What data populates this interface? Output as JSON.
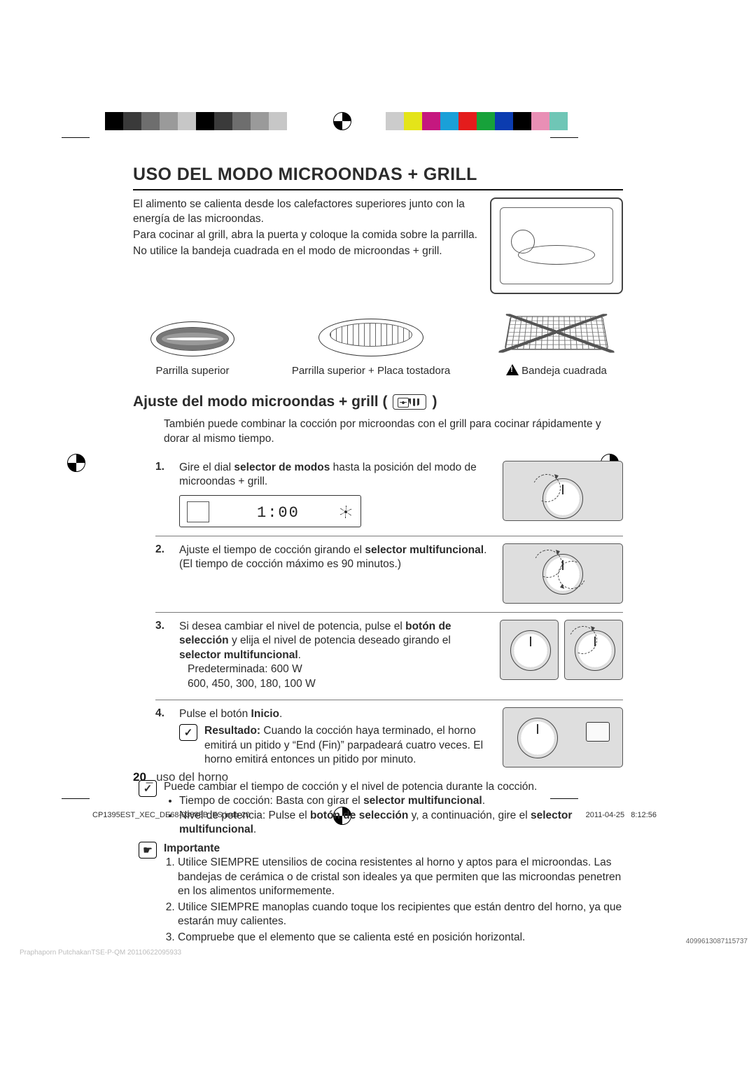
{
  "printer_marks": {
    "left_bar_colors": [
      "#000000",
      "#3a3a3a",
      "#6e6e6e",
      "#9a9a9a",
      "#c7c7c7",
      "#000000",
      "#3a3a3a",
      "#6e6e6e",
      "#9a9a9a",
      "#c7c7c7"
    ],
    "right_bar_colors": [
      "#cccccc",
      "#e4e419",
      "#c5187f",
      "#1aa0d8",
      "#e41c1c",
      "#17a23a",
      "#0b3cb0",
      "#000000",
      "#e98fb5",
      "#6fc6b6"
    ],
    "registration_positions": [
      "top-center",
      "left-mid",
      "right-mid",
      "bottom-center"
    ]
  },
  "title": "USO DEL MODO MICROONDAS + GRILL",
  "intro": {
    "p1": "El alimento se calienta desde los calefactores superiores junto con la energía de las microondas.",
    "p2": "Para cocinar al grill, abra la puerta y coloque la comida sobre la parrilla.",
    "p3": "No utilice la bandeja cuadrada en el modo de microondas + grill."
  },
  "accessories": {
    "a1": "Parrilla superior",
    "a2": "Parrilla superior + Placa tostadora",
    "a3": "Bandeja cuadrada"
  },
  "subtitle": "Ajuste del modo microondas + grill (",
  "subtitle_close": ")",
  "sub_intro": "También puede combinar la cocción por microondas con el grill para cocinar rápidamente y dorar al mismo tiempo.",
  "steps": {
    "s1_num": "1.",
    "s1_a": "Gire el dial ",
    "s1_b": "selector de modos",
    "s1_c": " hasta la posición del modo de microondas + grill.",
    "display_value": "1:00",
    "s2_num": "2.",
    "s2_a": "Ajuste el tiempo de cocción girando el ",
    "s2_b": "selector multifuncional",
    "s2_c": ".",
    "s2_note": "(El tiempo de cocción máximo es 90 minutos.)",
    "s3_num": "3.",
    "s3_a": "Si desea cambiar el nivel de potencia, pulse el ",
    "s3_b": "botón de selección",
    "s3_c": " y elija el nivel de potencia deseado girando el ",
    "s3_d": "selector multifuncional",
    "s3_e": ".",
    "s3_default": "Predeterminada: 600 W",
    "s3_levels": "600, 450, 300, 180, 100 W",
    "s4_num": "4.",
    "s4_a": "Pulse el botón ",
    "s4_b": "Inicio",
    "s4_c": ".",
    "s4_res_label": "Resultado:",
    "s4_res_text": " Cuando la cocción haya terminado, el horno emitirá un pitido y “End (Fin)” parpadeará cuatro veces. El horno emitirá entonces un pitido por minuto."
  },
  "note": {
    "lead": "Puede cambiar el tiempo de cocción y el nivel de potencia durante la cocción.",
    "b1a": "Tiempo de cocción: Basta con girar el ",
    "b1b": "selector multifuncional",
    "b1c": ".",
    "b2a": "Nivel de potencia: Pulse el ",
    "b2b": "botón de selección",
    "b2c": " y, a continuación, gire el ",
    "b2d": "selector multifuncional",
    "b2e": "."
  },
  "important": {
    "label": "Importante",
    "i1": "Utilice SIEMPRE utensilios de cocina resistentes al horno y aptos para el microondas. Las bandejas de cerámica o de cristal son ideales ya que permiten que las microondas penetren en los alimentos uniformemente.",
    "i2": "Utilice SIEMPRE manoplas cuando toque los recipientes que están dentro del horno, ya que estarán muy calientes.",
    "i3": "Compruebe que el elemento que se calienta esté en posición horizontal."
  },
  "footer": {
    "pagenum": "20",
    "section": "_ uso del horno"
  },
  "imprint": {
    "file": "CP1395EST_XEC_DE68-03885B_ES.indb   20",
    "date": "2011-04-25",
    "time": "8:12:56",
    "bl": "Praphaporn PutchakanTSE-P-QM  20110622095933",
    "br": "4099613087115737"
  },
  "icons": {
    "note_glyph": "✓",
    "important_glyph": "☛"
  }
}
